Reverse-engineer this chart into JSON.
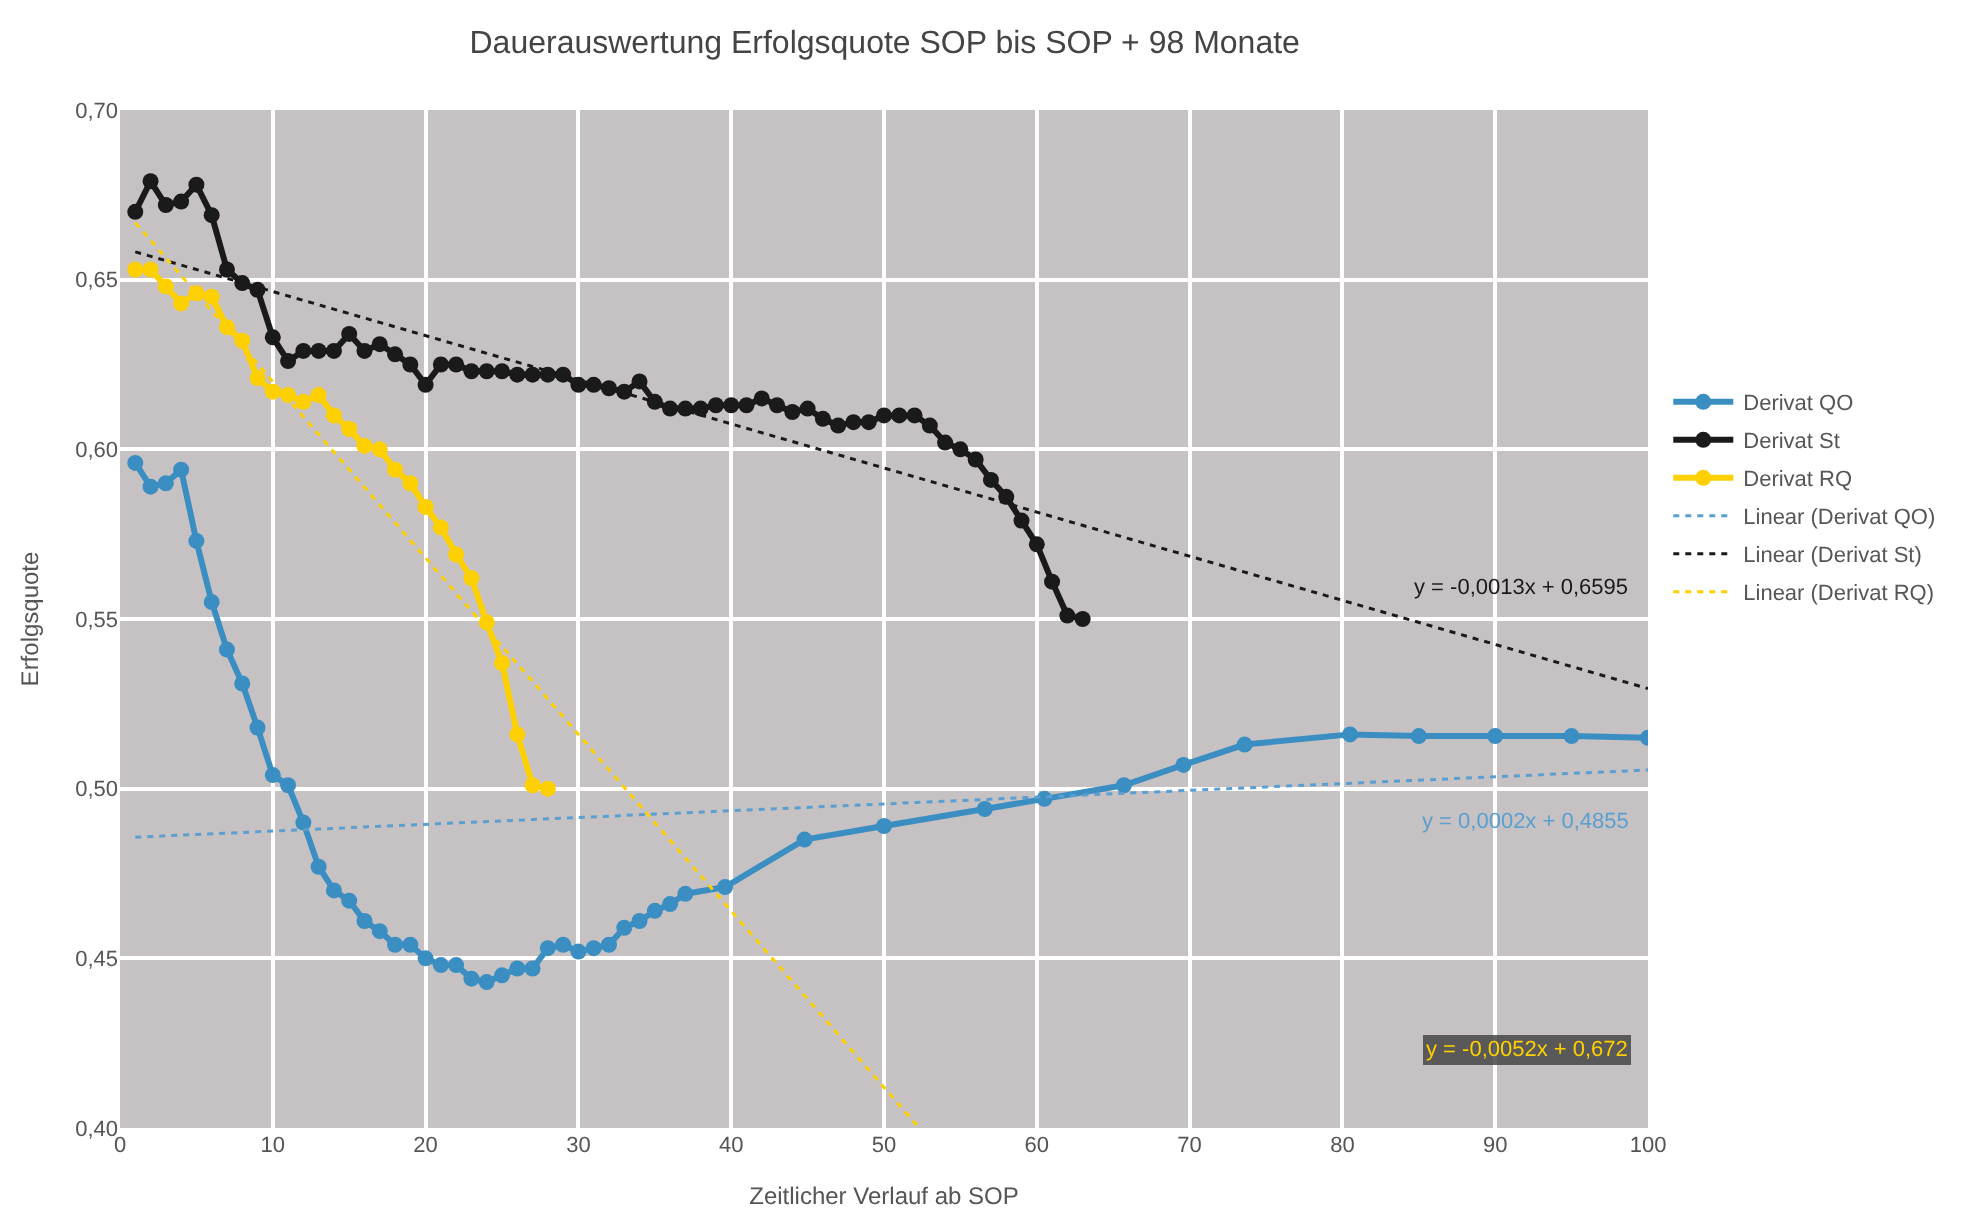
{
  "chart_data": {
    "type": "line",
    "title": "Dauerauswertung Erfolgsquote SOP bis SOP + 98 Monate",
    "xlabel": "Zeitlicher Verlauf ab SOP",
    "ylabel": "Erfolgsquote",
    "xlim": [
      0,
      100
    ],
    "xticks": [
      0,
      10,
      20,
      30,
      40,
      50,
      60,
      70,
      80,
      90,
      100
    ],
    "ylim": [
      0.4,
      0.7
    ],
    "yticks": [
      {
        "value": 0.4,
        "label": "0,40"
      },
      {
        "value": 0.45,
        "label": "0,45"
      },
      {
        "value": 0.5,
        "label": "0,50"
      },
      {
        "value": 0.55,
        "label": "0,55"
      },
      {
        "value": 0.6,
        "label": "0,60"
      },
      {
        "value": 0.65,
        "label": "0,65"
      },
      {
        "value": 0.7,
        "label": "0,70"
      }
    ],
    "grid": true,
    "legend": "right",
    "marker": "circle",
    "line_style": "solid",
    "series": [
      {
        "name": "Derivat QO",
        "color": "#3b8ec2",
        "x": [
          1,
          2,
          3,
          4,
          5,
          6,
          7,
          8,
          9,
          10,
          11,
          12,
          13,
          14,
          15,
          16,
          17,
          18,
          19,
          20,
          21,
          22,
          23,
          24,
          25,
          26,
          27,
          28,
          29,
          30,
          31,
          32,
          33,
          34,
          35,
          36,
          37,
          39.6,
          44.8,
          50,
          56.6,
          60.5,
          65.7,
          69.6,
          73.6,
          80.5,
          85,
          90,
          95,
          100
        ],
        "values": [
          0.596,
          0.589,
          0.59,
          0.594,
          0.573,
          0.555,
          0.541,
          0.531,
          0.518,
          0.504,
          0.501,
          0.49,
          0.477,
          0.47,
          0.467,
          0.461,
          0.458,
          0.454,
          0.454,
          0.45,
          0.448,
          0.448,
          0.444,
          0.443,
          0.445,
          0.447,
          0.447,
          0.453,
          0.454,
          0.452,
          0.453,
          0.454,
          0.459,
          0.461,
          0.464,
          0.466,
          0.469,
          0.471,
          0.485,
          0.489,
          0.494,
          0.497,
          0.501,
          0.507,
          0.513,
          0.516,
          0.5155,
          0.5155,
          0.5155,
          0.515
        ]
      },
      {
        "name": "Derivat St",
        "color": "#1a1a1a",
        "x": [
          1,
          2,
          3,
          4,
          5,
          6,
          7,
          8,
          9,
          10,
          11,
          12,
          13,
          14,
          15,
          16,
          17,
          18,
          19,
          20,
          21,
          22,
          23,
          24,
          25,
          26,
          27,
          28,
          29,
          30,
          31,
          32,
          33,
          34,
          35,
          36,
          37,
          38,
          39,
          40,
          41,
          42,
          43,
          44,
          45,
          46,
          47,
          48,
          49,
          50,
          51,
          52,
          53,
          54,
          55,
          56,
          57,
          58,
          59,
          60,
          61,
          62,
          63
        ],
        "values": [
          0.67,
          0.679,
          0.672,
          0.673,
          0.678,
          0.669,
          0.653,
          0.649,
          0.647,
          0.633,
          0.626,
          0.629,
          0.629,
          0.629,
          0.634,
          0.629,
          0.631,
          0.628,
          0.625,
          0.619,
          0.625,
          0.625,
          0.623,
          0.623,
          0.623,
          0.622,
          0.622,
          0.622,
          0.622,
          0.619,
          0.619,
          0.618,
          0.617,
          0.62,
          0.614,
          0.612,
          0.612,
          0.612,
          0.613,
          0.613,
          0.613,
          0.615,
          0.613,
          0.611,
          0.612,
          0.609,
          0.607,
          0.608,
          0.608,
          0.61,
          0.61,
          0.61,
          0.607,
          0.602,
          0.6,
          0.597,
          0.591,
          0.586,
          0.579,
          0.572,
          0.561,
          0.551,
          0.55
        ]
      },
      {
        "name": "Derivat RQ",
        "color": "#ffd000",
        "x": [
          1,
          2,
          3,
          4,
          5,
          6,
          7,
          8,
          9,
          10,
          11,
          12,
          13,
          14,
          15,
          16,
          17,
          18,
          19,
          20,
          21,
          22,
          23,
          24,
          25,
          26,
          27,
          28
        ],
        "values": [
          0.653,
          0.653,
          0.648,
          0.643,
          0.646,
          0.645,
          0.636,
          0.632,
          0.621,
          0.617,
          0.616,
          0.614,
          0.616,
          0.61,
          0.606,
          0.601,
          0.6,
          0.594,
          0.59,
          0.583,
          0.577,
          0.569,
          0.562,
          0.549,
          0.537,
          0.516,
          0.501,
          0.5
        ]
      },
      {
        "name": "Linear (Derivat QO)",
        "color": "#5a9fd0",
        "marker": "none",
        "line_style": "dotted",
        "x": [
          1,
          100
        ],
        "values": [
          0.4857,
          0.5055
        ]
      },
      {
        "name": "Linear (Derivat St)",
        "color": "#1a1a1a",
        "marker": "none",
        "line_style": "dotted",
        "x": [
          1,
          100
        ],
        "values": [
          0.6582,
          0.5295
        ]
      },
      {
        "name": "Linear (Derivat RQ)",
        "color": "#ffd000",
        "marker": "none",
        "line_style": "dotted",
        "x": [
          1,
          52.3
        ],
        "values": [
          0.6668,
          0.4
        ]
      }
    ],
    "annotations": [
      "y = 0,0002x + 0,4855",
      "y = -0,0013x + 0,6595",
      "y = -0,0052x + 0,672"
    ]
  }
}
